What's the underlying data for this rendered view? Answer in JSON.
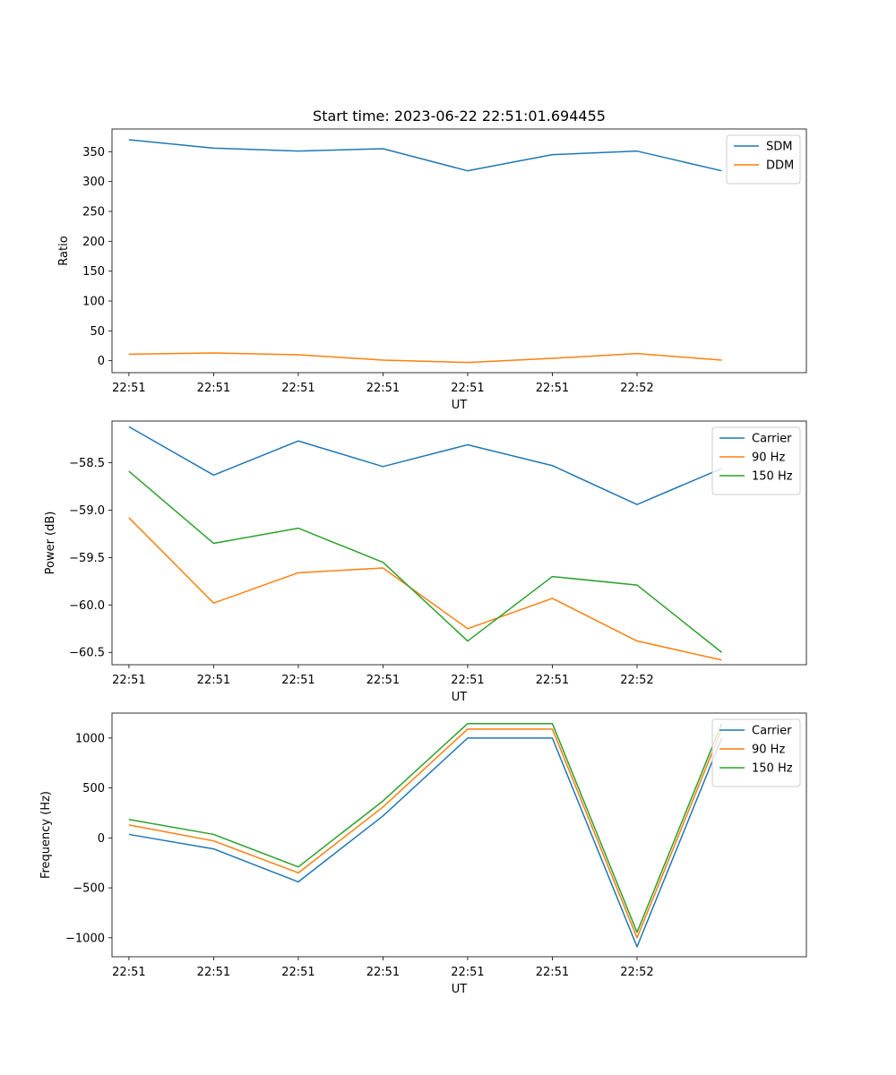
{
  "chart_data": [
    {
      "type": "line",
      "title": "Start time: 2023-06-22 22:51:01.694455",
      "xlabel": "UT",
      "ylabel": "Ratio",
      "x": [
        1,
        2,
        3,
        4,
        5,
        6,
        7,
        8
      ],
      "xlim": [
        0.8,
        9.0
      ],
      "xticks": [
        1,
        2,
        3,
        4,
        5,
        6,
        7
      ],
      "xtick_labels": [
        "22:51",
        "22:51",
        "22:51",
        "22:51",
        "22:51",
        "22:51",
        "22:52"
      ],
      "ylim": [
        -20,
        388
      ],
      "yticks": [
        0,
        50,
        100,
        150,
        200,
        250,
        300,
        350
      ],
      "ytick_labels": [
        "0",
        "50",
        "100",
        "150",
        "200",
        "250",
        "300",
        "350"
      ],
      "legend": "top-right",
      "grid": false,
      "series": [
        {
          "name": "SDM",
          "color": "#1f77b4",
          "values": [
            370,
            356,
            351,
            355,
            318,
            345,
            351,
            318
          ]
        },
        {
          "name": "DDM",
          "color": "#ff7f0e",
          "values": [
            11,
            13,
            10,
            1,
            -3,
            4,
            12,
            1
          ]
        }
      ]
    },
    {
      "type": "line",
      "title": "",
      "xlabel": "UT",
      "ylabel": "Power (dB)",
      "x": [
        1,
        2,
        3,
        4,
        5,
        6,
        7,
        8
      ],
      "xlim": [
        0.8,
        9.0
      ],
      "xticks": [
        1,
        2,
        3,
        4,
        5,
        6,
        7
      ],
      "xtick_labels": [
        "22:51",
        "22:51",
        "22:51",
        "22:51",
        "22:51",
        "22:51",
        "22:52"
      ],
      "ylim": [
        -60.63,
        -58.06
      ],
      "yticks": [
        -60.5,
        -60.0,
        -59.5,
        -59.0,
        -58.5
      ],
      "ytick_labels": [
        "−60.5",
        "−60.0",
        "−59.5",
        "−59.0",
        "−58.5"
      ],
      "legend": "top-right",
      "grid": false,
      "series": [
        {
          "name": "Carrier",
          "color": "#1f77b4",
          "values": [
            -58.12,
            -58.63,
            -58.27,
            -58.54,
            -58.31,
            -58.53,
            -58.94,
            -58.56
          ]
        },
        {
          "name": "90 Hz",
          "color": "#ff7f0e",
          "values": [
            -59.08,
            -59.98,
            -59.66,
            -59.61,
            -60.25,
            -59.93,
            -60.38,
            -60.58
          ]
        },
        {
          "name": "150 Hz",
          "color": "#2ca02c",
          "values": [
            -58.59,
            -59.35,
            -59.19,
            -59.55,
            -60.38,
            -59.7,
            -59.79,
            -60.5
          ]
        }
      ]
    },
    {
      "type": "line",
      "title": "",
      "xlabel": "UT",
      "ylabel": "Frequency (Hz)",
      "x": [
        1,
        2,
        3,
        4,
        5,
        6,
        7,
        8
      ],
      "xlim": [
        0.8,
        9.0
      ],
      "xticks": [
        1,
        2,
        3,
        4,
        5,
        6,
        7
      ],
      "xtick_labels": [
        "22:51",
        "22:51",
        "22:51",
        "22:51",
        "22:51",
        "22:51",
        "22:52"
      ],
      "ylim": [
        -1190,
        1250
      ],
      "yticks": [
        -1000,
        -500,
        0,
        500,
        1000
      ],
      "ytick_labels": [
        "−1000",
        "−500",
        "0",
        "500",
        "1000"
      ],
      "legend": "top-right",
      "grid": false,
      "series": [
        {
          "name": "Carrier",
          "color": "#1f77b4",
          "values": [
            35,
            -110,
            -440,
            220,
            1000,
            1000,
            -1090,
            1000
          ]
        },
        {
          "name": "90 Hz",
          "color": "#ff7f0e",
          "values": [
            130,
            -30,
            -350,
            310,
            1090,
            1090,
            -1000,
            1090
          ]
        },
        {
          "name": "150 Hz",
          "color": "#2ca02c",
          "values": [
            185,
            35,
            -290,
            370,
            1145,
            1145,
            -945,
            1145
          ]
        }
      ]
    }
  ]
}
